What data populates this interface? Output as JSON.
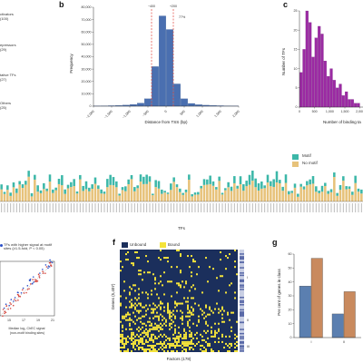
{
  "left_categories": [
    "ctivators\n(100)",
    "epressors\n(29)",
    "tative TFs\n(27)",
    "Others\n(25)"
  ],
  "panel_labels": {
    "b": "b",
    "c": "c",
    "f": "f",
    "g": "g"
  },
  "panel_b": {
    "ylabel": "Frequency",
    "xlabel": "Distance from TSS (bp)",
    "annot_left": "−400",
    "annot_right": "+200",
    "annot_pct": "77%",
    "yticks": [
      "0",
      "10,000",
      "20,000",
      "30,000",
      "40,000",
      "50,000",
      "60,000",
      "70,000",
      "80,000"
    ],
    "xticks": [
      "−2,000",
      "−1,500",
      "−1,000",
      "−500",
      "0",
      "500",
      "1,000",
      "1,500",
      "2,000"
    ]
  },
  "panel_c": {
    "ylabel": "Number of TFs",
    "xlabel": "Number of binding ta",
    "yticks": [
      "0",
      "5",
      "10",
      "15",
      "20",
      "25"
    ],
    "xticks": [
      "0",
      "500",
      "1,000",
      "1,500",
      "2,000"
    ]
  },
  "panel_e": {
    "xlabel": "TFs",
    "legend": [
      {
        "label": "Motif",
        "color": "#3cb7a8"
      },
      {
        "label": "No motif",
        "color": "#e7c27a"
      }
    ]
  },
  "panel_f": {
    "legend": [
      {
        "label": "Unbound",
        "color": "#1b2f5c"
      },
      {
        "label": "Bound",
        "color": "#f4e33a"
      }
    ],
    "ylabel": "Genes (5,407)",
    "xlabel": "Factors (178)",
    "cluster_labels": [
      "I",
      "II",
      "III"
    ]
  },
  "panel_g": {
    "ylabel": "Per cent of genes in class",
    "yticks": [
      "0",
      "10",
      "20",
      "30",
      "40",
      "50",
      "60"
    ],
    "xticks": [
      "I",
      "II"
    ],
    "colors": [
      "#5b7fb0",
      "#c98a5e"
    ]
  },
  "panel_d": {
    "legend_text": "TFs with higher signal at motif\nsites (≥1.5-fold, P < 0.05)",
    "xlabel": "Median log₂ ChEC signal\n(non-motif binding sites)",
    "xticks": [
      "15",
      "17",
      "19",
      "21"
    ]
  },
  "chart_data": [
    {
      "type": "bar",
      "title": "",
      "xlabel": "Distance from TSS (bp)",
      "ylabel": "Frequency",
      "xlim": [
        -2000,
        2000
      ],
      "ylim": [
        0,
        80000
      ],
      "categories": [
        -1900,
        -1700,
        -1500,
        -1300,
        -1100,
        -900,
        -700,
        -500,
        -300,
        -100,
        100,
        300,
        500,
        700,
        900,
        1100,
        1300,
        1500,
        1700,
        1900
      ],
      "values": [
        200,
        300,
        400,
        600,
        900,
        1400,
        2500,
        6000,
        32000,
        73000,
        62000,
        18000,
        6000,
        2200,
        1200,
        800,
        600,
        400,
        300,
        200
      ]
    },
    {
      "type": "bar",
      "title": "",
      "xlabel": "Number of binding ta",
      "ylabel": "Number of TFs",
      "xlim": [
        0,
        2100
      ],
      "ylim": [
        0,
        25
      ],
      "categories": [
        50,
        150,
        250,
        350,
        450,
        550,
        650,
        750,
        850,
        950,
        1050,
        1150,
        1250,
        1350,
        1450,
        1550,
        1650,
        1750,
        1850,
        1950
      ],
      "values": [
        9,
        15,
        25,
        22,
        13,
        18,
        21,
        19,
        12,
        8,
        10,
        7,
        5,
        6,
        3,
        4,
        2,
        2,
        1,
        1
      ]
    },
    {
      "type": "bar",
      "title": "",
      "xlabel": "",
      "ylabel": "Per cent of genes in class",
      "ylim": [
        0,
        60
      ],
      "categories": [
        "I",
        "II"
      ],
      "series": [
        {
          "values": [
            37,
            17
          ]
        },
        {
          "values": [
            57,
            33
          ]
        }
      ]
    }
  ]
}
